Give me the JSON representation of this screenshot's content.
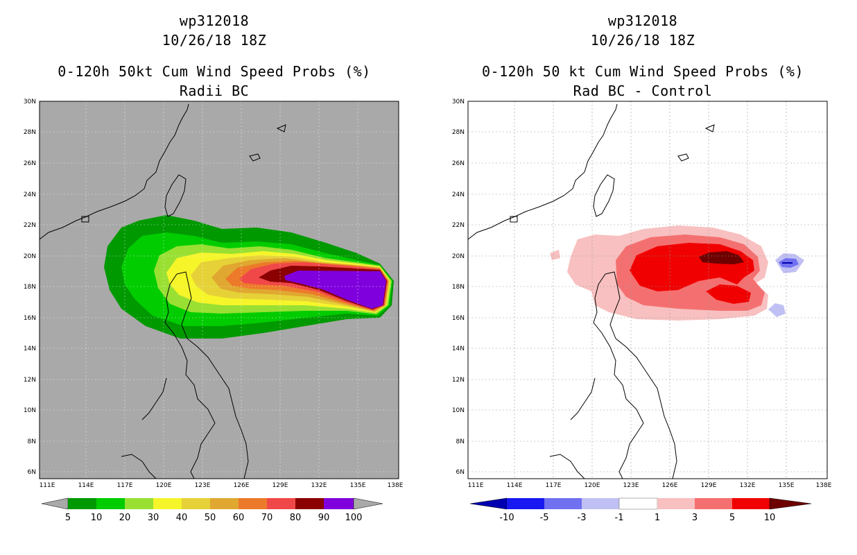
{
  "left": {
    "header_line1": "wp312018",
    "header_line2": "10/26/18 18Z",
    "title_line1": "0-120h 50kt Cum Wind Speed Probs (%)",
    "title_line2": "Radii BC",
    "lat_labels": [
      "30N",
      "28N",
      "26N",
      "24N",
      "22N",
      "20N",
      "18N",
      "16N",
      "14N",
      "12N",
      "10N",
      "8N",
      "6N"
    ],
    "lon_labels": [
      "111E",
      "114E",
      "117E",
      "120E",
      "123E",
      "126E",
      "129E",
      "132E",
      "135E",
      "138E"
    ],
    "colorbar_labels": [
      "5",
      "10",
      "20",
      "30",
      "40",
      "50",
      "60",
      "70",
      "80",
      "90",
      "100"
    ],
    "colorbar_colors": [
      "#009900",
      "#00cc00",
      "#99e033",
      "#f5f52a",
      "#e6d238",
      "#e0a830",
      "#ec7a2a",
      "#f04848",
      "#8b0000",
      "#7f00dd"
    ],
    "background_color": "#a9a9a9"
  },
  "right": {
    "header_line1": "wp312018",
    "header_line2": "10/26/18 18Z",
    "title_line1": "0-120h 50 kt Cum Wind Speed Probs (%)",
    "title_line2": "Rad BC - Control",
    "lat_labels": [
      "30N",
      "28N",
      "26N",
      "24N",
      "22N",
      "20N",
      "18N",
      "16N",
      "14N",
      "12N",
      "10N",
      "8N",
      "6N"
    ],
    "lon_labels": [
      "111E",
      "114E",
      "117E",
      "120E",
      "123E",
      "126E",
      "129E",
      "132E",
      "135E",
      "138E"
    ],
    "colorbar_labels": [
      "-10",
      "-5",
      "-3",
      "-1",
      "1",
      "3",
      "5",
      "10"
    ],
    "colorbar_colors": [
      "#0000b0",
      "#1818f0",
      "#7070f0",
      "#c0c0f4",
      "#ffffff",
      "#f8c0c0",
      "#f47070",
      "#f00000",
      "#6e0000"
    ],
    "background_color": "#ffffff"
  }
}
